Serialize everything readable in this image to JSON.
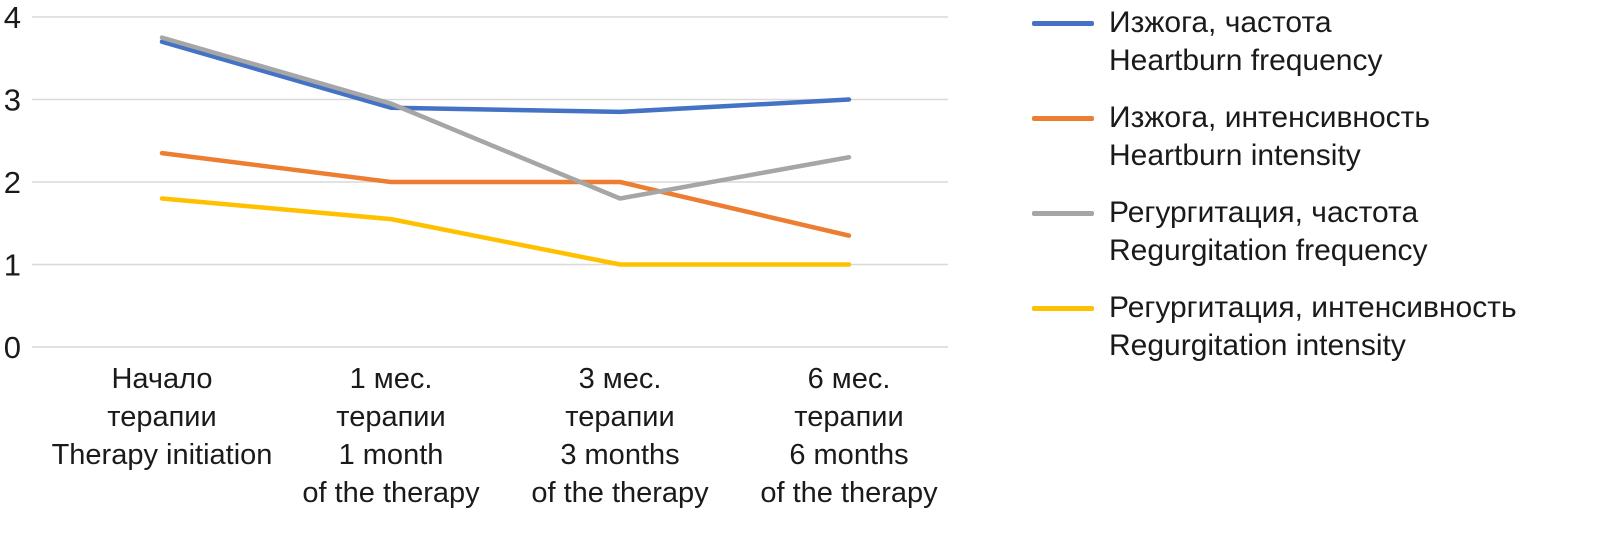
{
  "chart_data": {
    "type": "line",
    "title": "",
    "xlabel": "",
    "ylabel": "",
    "ylim": [
      0,
      4
    ],
    "yticks": [
      0,
      1,
      2,
      3,
      4
    ],
    "grid": true,
    "grid_color": "#d9d9d9",
    "legend_position": "right",
    "categories": [
      [
        "Начало",
        "терапии",
        "Therapy initiation"
      ],
      [
        "1 мес.",
        "терапии",
        "1 month",
        "of the therapy"
      ],
      [
        "3 мес.",
        "терапии",
        "3 months",
        "of the therapy"
      ],
      [
        "6 мес.",
        "терапии",
        "6 months",
        "of the therapy"
      ]
    ],
    "series": [
      {
        "id": "heartburn-frequency",
        "name_ru": "Изжога, частота",
        "name_en": "Heartburn frequency",
        "color": "#4472c4",
        "values": [
          3.7,
          2.9,
          2.85,
          3.0
        ]
      },
      {
        "id": "heartburn-intensity",
        "name_ru": "Изжога, интенсивность",
        "name_en": "Heartburn intensity",
        "color": "#ed7d31",
        "values": [
          2.35,
          2.0,
          2.0,
          1.35
        ]
      },
      {
        "id": "regurgitation-frequency",
        "name_ru": "Регургитация, частота",
        "name_en": "Regurgitation frequency",
        "color": "#a6a6a6",
        "values": [
          3.75,
          2.95,
          1.8,
          2.3
        ]
      },
      {
        "id": "regurgitation-intensity",
        "name_ru": "Регургитация, интенсивность",
        "name_en": "Regurgitation intensity",
        "color": "#ffc000",
        "values": [
          1.8,
          1.55,
          1.0,
          1.0
        ]
      }
    ]
  }
}
